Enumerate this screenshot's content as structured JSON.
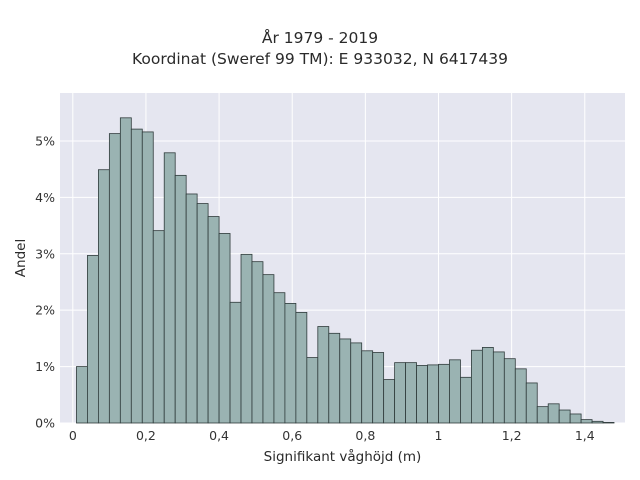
{
  "chart_data": {
    "type": "bar",
    "title": "År 1979 - 2019",
    "subtitle": "Koordinat (Sweref 99 TM): E 933032, N 6417439",
    "xlabel": "Signifikant våghöjd (m)",
    "ylabel": "Andel",
    "xlim": [
      -0.035,
      1.51
    ],
    "ylim": [
      0,
      5.85
    ],
    "x_ticks": [
      0,
      0.2,
      0.4,
      0.6,
      0.8,
      1.0,
      1.2,
      1.4
    ],
    "x_tick_labels": [
      "0",
      "0,2",
      "0,4",
      "0,6",
      "0,8",
      "1",
      "1,2",
      "1,4"
    ],
    "y_ticks": [
      0,
      1,
      2,
      3,
      4,
      5
    ],
    "y_tick_labels": [
      "0%",
      "1%",
      "2%",
      "3%",
      "4%",
      "5%"
    ],
    "bin_start": 0.01,
    "bin_width": 0.03,
    "values": [
      1.0,
      2.97,
      4.49,
      5.13,
      5.41,
      5.21,
      5.16,
      3.41,
      4.79,
      4.39,
      4.06,
      3.89,
      3.66,
      3.36,
      2.14,
      2.99,
      2.86,
      2.63,
      2.31,
      2.12,
      1.96,
      1.16,
      1.71,
      1.59,
      1.49,
      1.42,
      1.28,
      1.25,
      0.77,
      1.07,
      1.07,
      1.02,
      1.03,
      1.04,
      1.12,
      0.81,
      1.29,
      1.34,
      1.26,
      1.14,
      0.96,
      0.71,
      0.29,
      0.34,
      0.23,
      0.16,
      0.06,
      0.03,
      0.01
    ],
    "grid": true,
    "legend": "none",
    "colors": {
      "bar_fill": "#9ab3b2",
      "bar_edge": "#2f3b3b",
      "plot_background": "#e5e6f0",
      "grid": "#ffffff"
    }
  }
}
